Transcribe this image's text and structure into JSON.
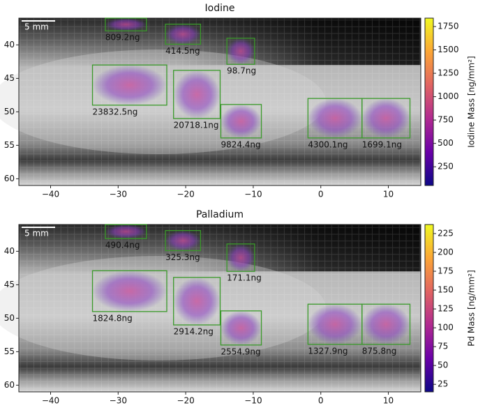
{
  "chart_data": [
    {
      "type": "heatmap",
      "title": "Iodine",
      "scalebar": "5 mm",
      "xlim": [
        -44.7,
        14.8
      ],
      "ylim": [
        36,
        61
      ],
      "invert_y": true,
      "xticks": [
        {
          "value": -40,
          "label": "−40"
        },
        {
          "value": -30,
          "label": "−30"
        },
        {
          "value": -20,
          "label": "−20"
        },
        {
          "value": -10,
          "label": "−10"
        },
        0,
        10
      ],
      "yticks": [
        40,
        45,
        50,
        55,
        60
      ],
      "roi_color": "#3a9a2a",
      "rois": [
        {
          "label": "809.2ng",
          "x": [
            -31.9,
            -25.8
          ],
          "y": [
            36,
            37.9
          ]
        },
        {
          "label": "414.5ng",
          "x": [
            -23.0,
            -17.8
          ],
          "y": [
            36.9,
            39.9
          ]
        },
        {
          "label": "98.7ng",
          "x": [
            -13.9,
            -9.8
          ],
          "y": [
            39.0,
            42.9
          ]
        },
        {
          "label": "23832.5ng",
          "x": [
            -33.8,
            -22.8
          ],
          "y": [
            43.0,
            49.0
          ]
        },
        {
          "label": "20718.1ng",
          "x": [
            -21.8,
            -14.9
          ],
          "y": [
            43.8,
            51.0
          ]
        },
        {
          "label": "9824.4ng",
          "x": [
            -14.8,
            -8.8
          ],
          "y": [
            48.9,
            53.9
          ]
        },
        {
          "label": "4300.1ng",
          "x": [
            -1.9,
            6.1
          ],
          "y": [
            48.0,
            53.9
          ]
        },
        {
          "label": "1699.1ng",
          "x": [
            6.1,
            13.2
          ],
          "y": [
            48.0,
            53.9
          ]
        }
      ],
      "colorbar": {
        "label": "Iodine Mass [ng/mm²]",
        "clim": [
          50,
          1840
        ],
        "ticks": [
          250,
          500,
          750,
          1000,
          1250,
          1500,
          1750
        ]
      }
    },
    {
      "type": "heatmap",
      "title": "Palladium",
      "scalebar": "5 mm",
      "xlim": [
        -44.7,
        14.8
      ],
      "ylim": [
        36,
        61
      ],
      "invert_y": true,
      "xticks": [
        {
          "value": -40,
          "label": "−40"
        },
        {
          "value": -30,
          "label": "−30"
        },
        {
          "value": -20,
          "label": "−20"
        },
        {
          "value": -10,
          "label": "−10"
        },
        0,
        10
      ],
      "yticks": [
        40,
        45,
        50,
        55,
        60
      ],
      "roi_color": "#3a9a2a",
      "rois": [
        {
          "label": "490.4ng",
          "x": [
            -31.9,
            -25.8
          ],
          "y": [
            36,
            38.1
          ]
        },
        {
          "label": "325.3ng",
          "x": [
            -23.0,
            -17.8
          ],
          "y": [
            36.9,
            39.9
          ]
        },
        {
          "label": "171.1ng",
          "x": [
            -13.9,
            -9.8
          ],
          "y": [
            38.9,
            43.0
          ]
        },
        {
          "label": "1824.8ng",
          "x": [
            -33.8,
            -22.8
          ],
          "y": [
            42.9,
            49.0
          ]
        },
        {
          "label": "2914.2ng",
          "x": [
            -21.8,
            -14.9
          ],
          "y": [
            43.9,
            51.0
          ]
        },
        {
          "label": "2554.9ng",
          "x": [
            -14.8,
            -8.8
          ],
          "y": [
            48.9,
            54.0
          ]
        },
        {
          "label": "1327.9ng",
          "x": [
            -1.9,
            6.1
          ],
          "y": [
            47.9,
            53.9
          ]
        },
        {
          "label": "875.8ng",
          "x": [
            6.1,
            13.2
          ],
          "y": [
            47.9,
            53.9
          ]
        }
      ],
      "colorbar": {
        "label": "Pd Mass [ng/mm²]",
        "clim": [
          15,
          237
        ],
        "ticks": [
          25,
          50,
          75,
          100,
          125,
          150,
          175,
          200,
          225
        ]
      }
    }
  ]
}
